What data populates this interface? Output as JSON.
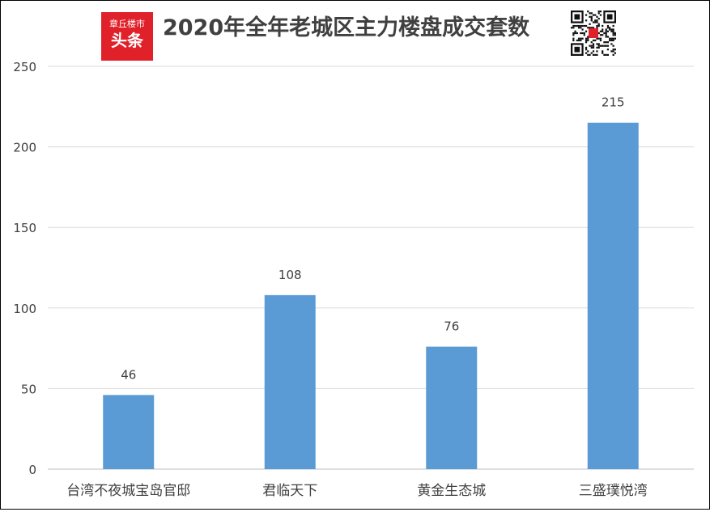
{
  "header": {
    "logo_top": "章丘楼市",
    "logo_main": "头条",
    "title": "2020年全年老城区主力楼盘成交套数"
  },
  "colors": {
    "bar": "#5b9bd5",
    "grid": "#d9d9d9",
    "text": "#404040",
    "logo": "#e0212a"
  },
  "chart_data": {
    "type": "bar",
    "title": "2020年全年老城区主力楼盘成交套数",
    "xlabel": "",
    "ylabel": "",
    "categories": [
      "台湾不夜城宝岛官邸",
      "君临天下",
      "黄金生态城",
      "三盛璞悦湾"
    ],
    "values": [
      46,
      108,
      76,
      215
    ],
    "ylim": [
      0,
      250
    ],
    "yticks": [
      0,
      50,
      100,
      150,
      200,
      250
    ],
    "grid": true,
    "data_labels": true,
    "legend": "none"
  }
}
